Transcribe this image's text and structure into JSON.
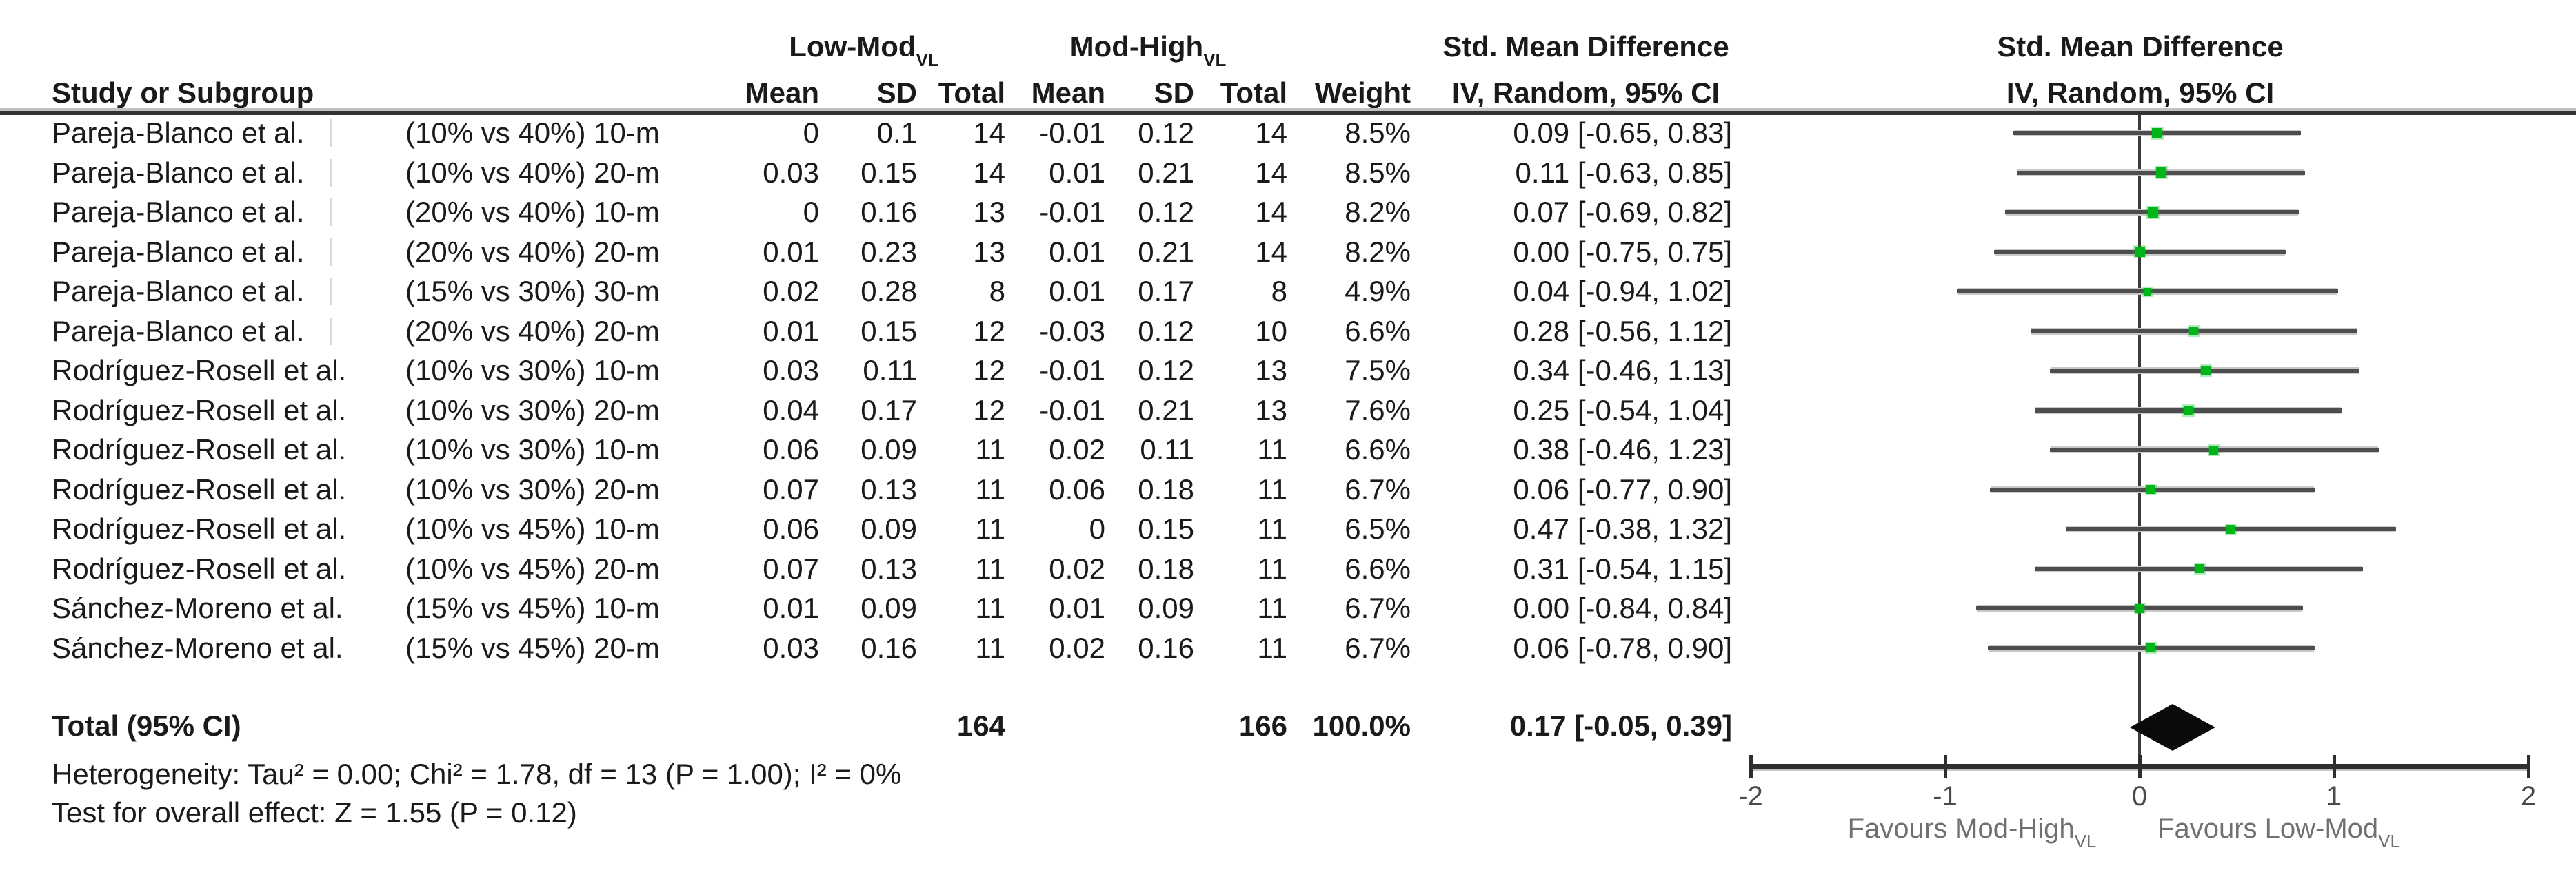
{
  "header": {
    "study_col": "Study or Subgroup",
    "group1": {
      "name": "Low-Mod",
      "sub": "VL"
    },
    "group2": {
      "name": "Mod-High",
      "sub": "VL"
    },
    "mean": "Mean",
    "sd": "SD",
    "total": "Total",
    "weight": "Weight",
    "smd_title": "Std. Mean Difference",
    "smd_subtitle": "IV, Random, 95% CI"
  },
  "colors": {
    "marker_green": "#00b517",
    "ci_line": "#4d4d4d",
    "diamond": "#0a0a0a",
    "rule": "#333333"
  },
  "chart_data": {
    "type": "forest",
    "effect_measure": "Std. Mean Difference",
    "model": "IV, Random, 95% CI",
    "xlim": [
      -2,
      2
    ],
    "axis": {
      "ticks": [
        "-2",
        "-1",
        "0",
        "1",
        "2"
      ]
    },
    "favours_left": "Favours Mod-High",
    "favours_right": "Favours Low-Mod",
    "favours_sub": "VL",
    "studies": [
      {
        "study": "Pareja-Blanco et al.",
        "clipped": true,
        "subgroup": "(10% vs 40%) 10-m",
        "mean1": "0",
        "sd1": "0.1",
        "n1": "14",
        "mean2": "-0.01",
        "sd2": "0.12",
        "n2": "14",
        "weight": "8.5%",
        "weight_pct": 8.5,
        "smd": 0.09,
        "ci_low": -0.65,
        "ci_high": 0.83,
        "ci_text": "0.09 [-0.65, 0.83]"
      },
      {
        "study": "Pareja-Blanco et al.",
        "clipped": true,
        "subgroup": "(10% vs 40%) 20-m",
        "mean1": "0.03",
        "sd1": "0.15",
        "n1": "14",
        "mean2": "0.01",
        "sd2": "0.21",
        "n2": "14",
        "weight": "8.5%",
        "weight_pct": 8.5,
        "smd": 0.11,
        "ci_low": -0.63,
        "ci_high": 0.85,
        "ci_text": "0.11 [-0.63, 0.85]"
      },
      {
        "study": "Pareja-Blanco et al.",
        "clipped": true,
        "subgroup": "(20% vs 40%) 10-m",
        "mean1": "0",
        "sd1": "0.16",
        "n1": "13",
        "mean2": "-0.01",
        "sd2": "0.12",
        "n2": "14",
        "weight": "8.2%",
        "weight_pct": 8.2,
        "smd": 0.07,
        "ci_low": -0.69,
        "ci_high": 0.82,
        "ci_text": "0.07 [-0.69, 0.82]"
      },
      {
        "study": "Pareja-Blanco et al.",
        "clipped": true,
        "subgroup": "(20% vs 40%) 20-m",
        "mean1": "0.01",
        "sd1": "0.23",
        "n1": "13",
        "mean2": "0.01",
        "sd2": "0.21",
        "n2": "14",
        "weight": "8.2%",
        "weight_pct": 8.2,
        "smd": 0.0,
        "ci_low": -0.75,
        "ci_high": 0.75,
        "ci_text": "0.00 [-0.75, 0.75]"
      },
      {
        "study": "Pareja-Blanco et al.",
        "clipped": true,
        "subgroup": "(15% vs 30%) 30-m",
        "mean1": "0.02",
        "sd1": "0.28",
        "n1": "8",
        "mean2": "0.01",
        "sd2": "0.17",
        "n2": "8",
        "weight": "4.9%",
        "weight_pct": 4.9,
        "smd": 0.04,
        "ci_low": -0.94,
        "ci_high": 1.02,
        "ci_text": "0.04 [-0.94, 1.02]"
      },
      {
        "study": "Pareja-Blanco et al.",
        "clipped": true,
        "subgroup": "(20% vs 40%) 20-m",
        "mean1": "0.01",
        "sd1": "0.15",
        "n1": "12",
        "mean2": "-0.03",
        "sd2": "0.12",
        "n2": "10",
        "weight": "6.6%",
        "weight_pct": 6.6,
        "smd": 0.28,
        "ci_low": -0.56,
        "ci_high": 1.12,
        "ci_text": "0.28 [-0.56, 1.12]"
      },
      {
        "study": "Rodríguez-Rosell et al.",
        "clipped": false,
        "subgroup": "(10% vs 30%) 10-m",
        "mean1": "0.03",
        "sd1": "0.11",
        "n1": "12",
        "mean2": "-0.01",
        "sd2": "0.12",
        "n2": "13",
        "weight": "7.5%",
        "weight_pct": 7.5,
        "smd": 0.34,
        "ci_low": -0.46,
        "ci_high": 1.13,
        "ci_text": "0.34 [-0.46, 1.13]"
      },
      {
        "study": "Rodríguez-Rosell et al.",
        "clipped": false,
        "subgroup": "(10% vs 30%) 20-m",
        "mean1": "0.04",
        "sd1": "0.17",
        "n1": "12",
        "mean2": "-0.01",
        "sd2": "0.21",
        "n2": "13",
        "weight": "7.6%",
        "weight_pct": 7.6,
        "smd": 0.25,
        "ci_low": -0.54,
        "ci_high": 1.04,
        "ci_text": "0.25 [-0.54, 1.04]"
      },
      {
        "study": "Rodríguez-Rosell et al.",
        "clipped": false,
        "subgroup": "(10% vs 30%) 10-m",
        "mean1": "0.06",
        "sd1": "0.09",
        "n1": "11",
        "mean2": "0.02",
        "sd2": "0.11",
        "n2": "11",
        "weight": "6.6%",
        "weight_pct": 6.6,
        "smd": 0.38,
        "ci_low": -0.46,
        "ci_high": 1.23,
        "ci_text": "0.38 [-0.46, 1.23]"
      },
      {
        "study": "Rodríguez-Rosell et al.",
        "clipped": false,
        "subgroup": "(10% vs 30%) 20-m",
        "mean1": "0.07",
        "sd1": "0.13",
        "n1": "11",
        "mean2": "0.06",
        "sd2": "0.18",
        "n2": "11",
        "weight": "6.7%",
        "weight_pct": 6.7,
        "smd": 0.06,
        "ci_low": -0.77,
        "ci_high": 0.9,
        "ci_text": "0.06 [-0.77, 0.90]"
      },
      {
        "study": "Rodríguez-Rosell et al.",
        "clipped": false,
        "subgroup": "(10% vs 45%) 10-m",
        "mean1": "0.06",
        "sd1": "0.09",
        "n1": "11",
        "mean2": "0",
        "sd2": "0.15",
        "n2": "11",
        "weight": "6.5%",
        "weight_pct": 6.5,
        "smd": 0.47,
        "ci_low": -0.38,
        "ci_high": 1.32,
        "ci_text": "0.47 [-0.38, 1.32]"
      },
      {
        "study": "Rodríguez-Rosell et al.",
        "clipped": false,
        "subgroup": "(10% vs 45%) 20-m",
        "mean1": "0.07",
        "sd1": "0.13",
        "n1": "11",
        "mean2": "0.02",
        "sd2": "0.18",
        "n2": "11",
        "weight": "6.6%",
        "weight_pct": 6.6,
        "smd": 0.31,
        "ci_low": -0.54,
        "ci_high": 1.15,
        "ci_text": "0.31 [-0.54, 1.15]"
      },
      {
        "study": "Sánchez-Moreno et al.",
        "clipped": false,
        "subgroup": "(15% vs 45%) 10-m",
        "mean1": "0.01",
        "sd1": "0.09",
        "n1": "11",
        "mean2": "0.01",
        "sd2": "0.09",
        "n2": "11",
        "weight": "6.7%",
        "weight_pct": 6.7,
        "smd": 0.0,
        "ci_low": -0.84,
        "ci_high": 0.84,
        "ci_text": "0.00 [-0.84, 0.84]"
      },
      {
        "study": "Sánchez-Moreno et al.",
        "clipped": false,
        "subgroup": "(15% vs 45%) 20-m",
        "mean1": "0.03",
        "sd1": "0.16",
        "n1": "11",
        "mean2": "0.02",
        "sd2": "0.16",
        "n2": "11",
        "weight": "6.7%",
        "weight_pct": 6.7,
        "smd": 0.06,
        "ci_low": -0.78,
        "ci_high": 0.9,
        "ci_text": "0.06 [-0.78, 0.90]"
      }
    ],
    "total": {
      "label": "Total (95% CI)",
      "n1": "164",
      "n2": "166",
      "weight": "100.0%",
      "smd": 0.17,
      "ci_low": -0.05,
      "ci_high": 0.39,
      "ci_text": "0.17 [-0.05, 0.39]"
    },
    "heterogeneity": "Heterogeneity: Tau² = 0.00; Chi² = 1.78, df = 13 (P = 1.00); I² = 0%",
    "overall_effect": "Test for overall effect: Z = 1.55 (P = 0.12)"
  }
}
